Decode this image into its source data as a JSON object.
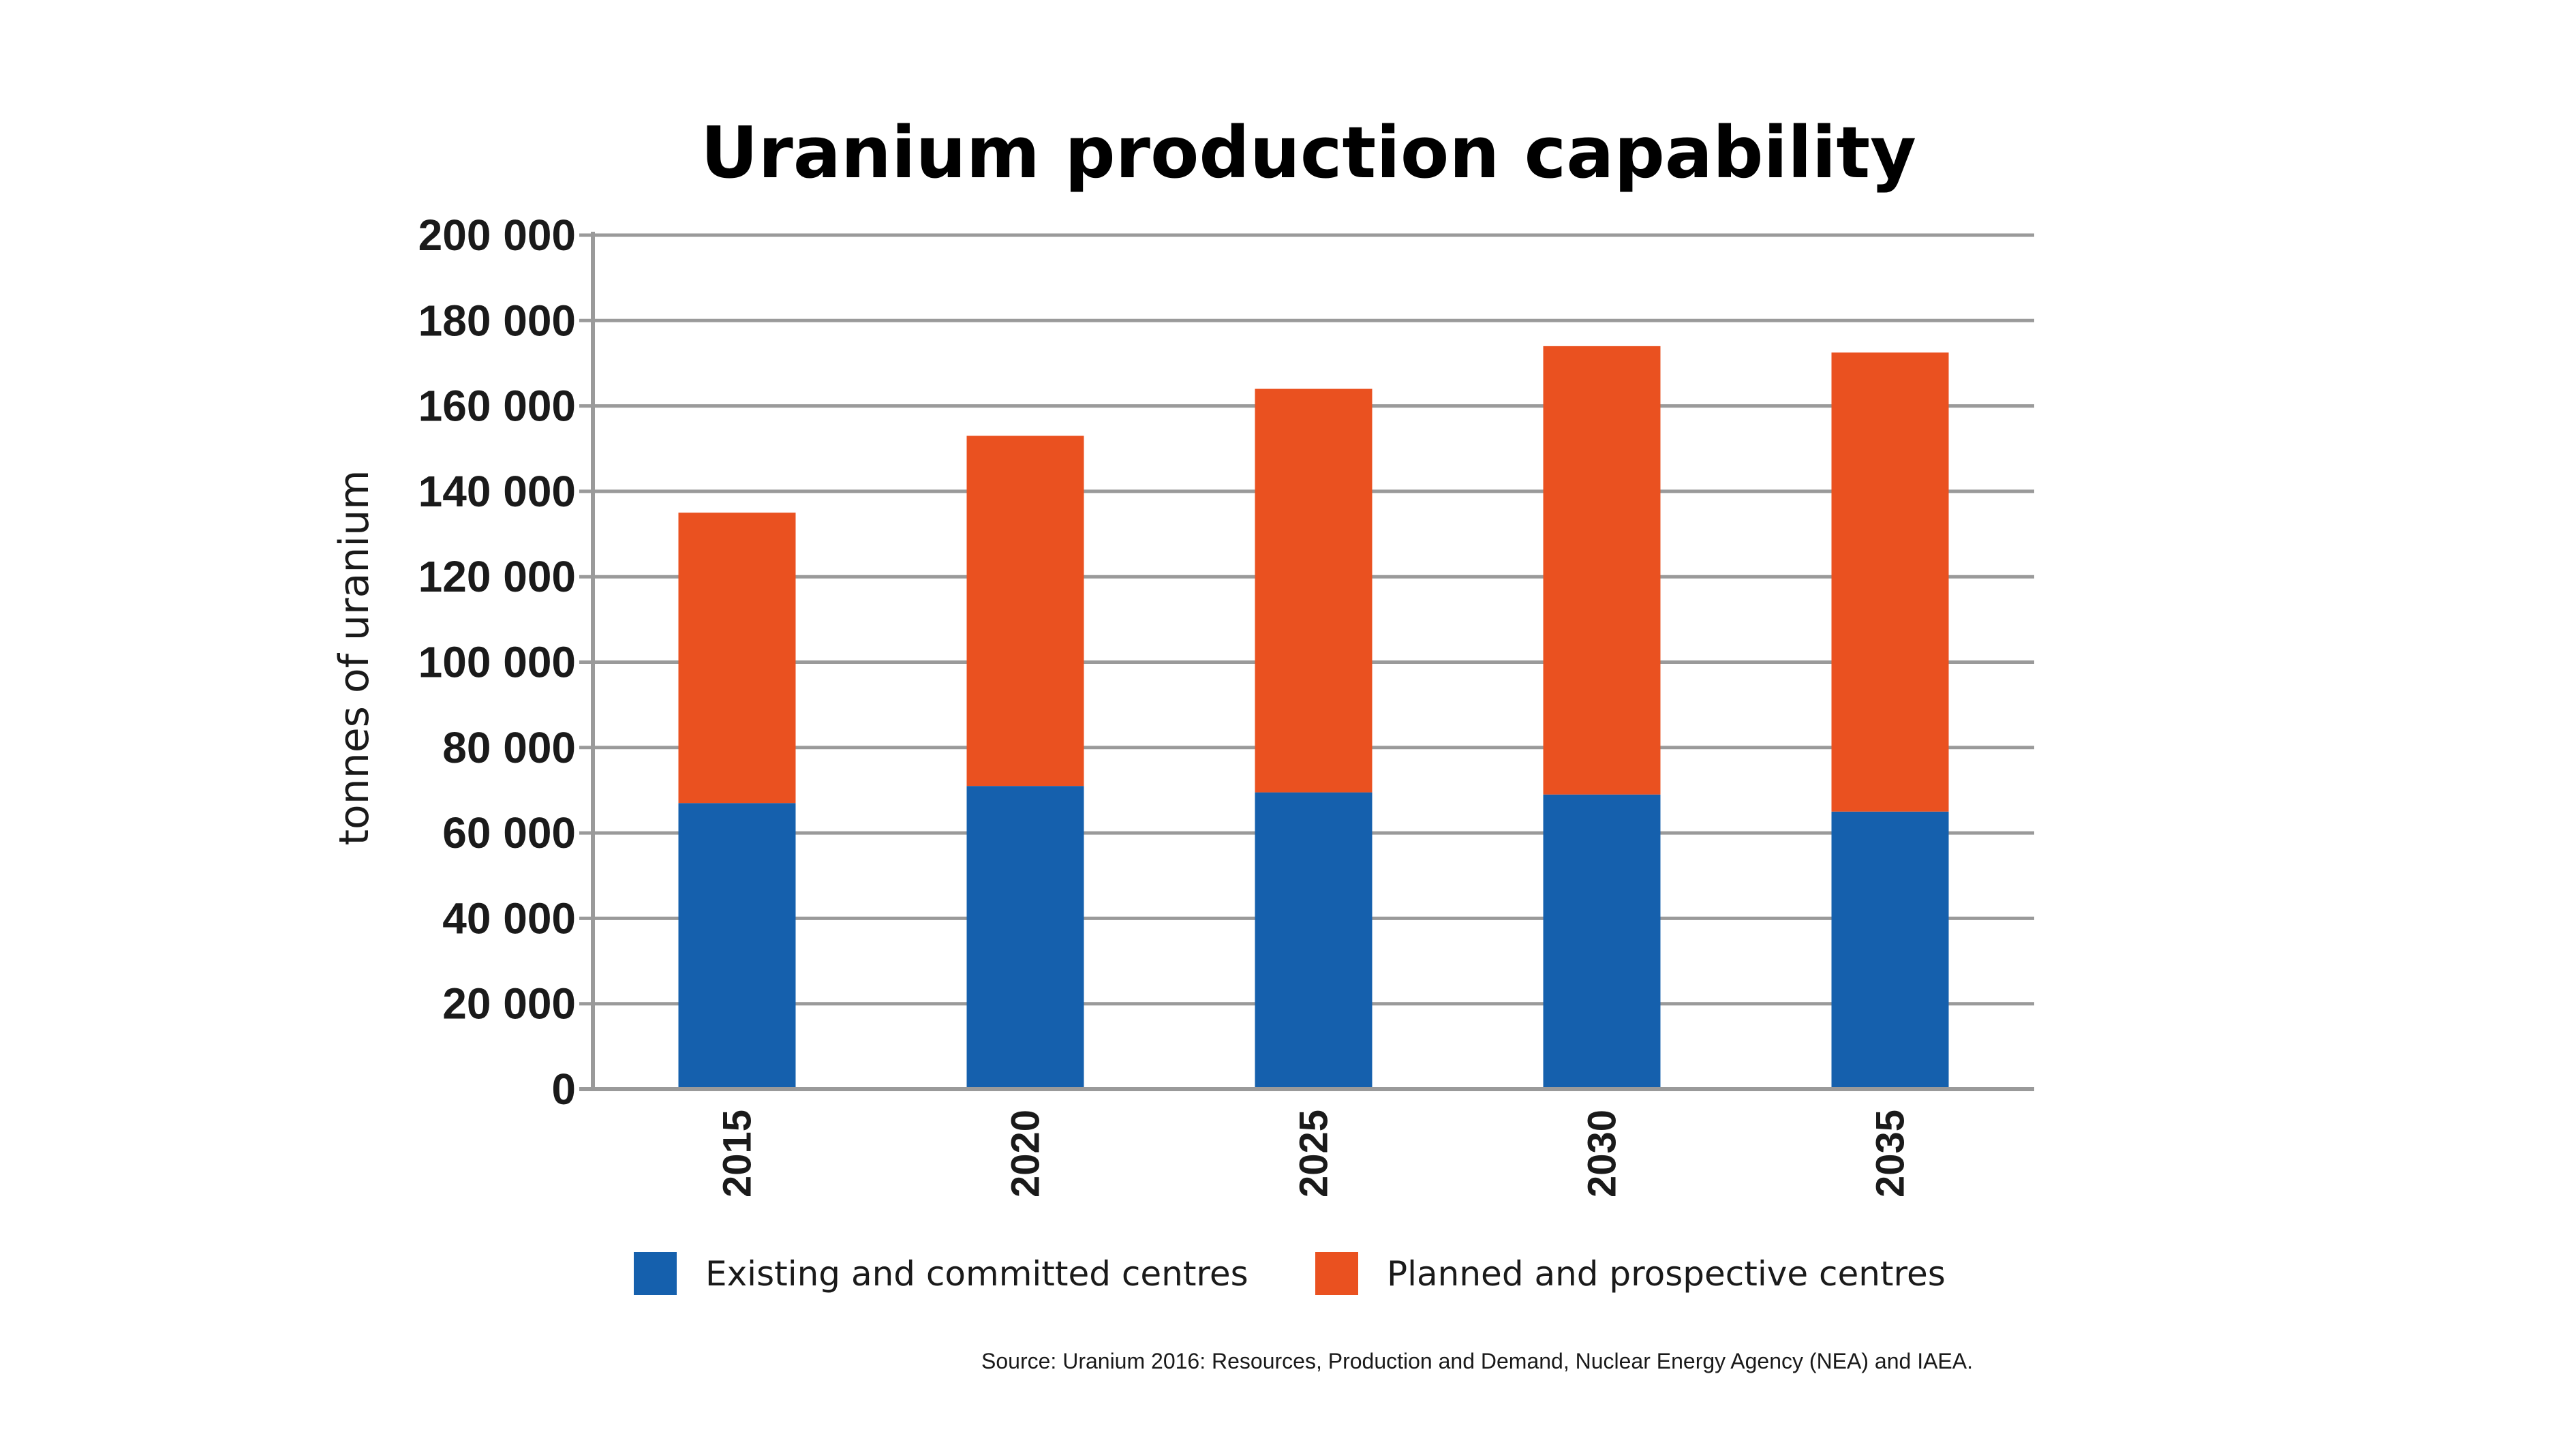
{
  "chart_data": {
    "type": "bar",
    "stacked": true,
    "title": "Uranium production capability",
    "ylabel": "tonnes of uranium",
    "xlabel": "",
    "categories": [
      "2015",
      "2020",
      "2025",
      "2030",
      "2035"
    ],
    "series": [
      {
        "name": "Existing and committed centres",
        "color": "#1560ad",
        "values": [
          67000,
          71000,
          69500,
          69000,
          65000
        ]
      },
      {
        "name": "Planned and prospective centres",
        "color": "#ea5120",
        "values": [
          68000,
          82000,
          94500,
          105000,
          107500
        ]
      }
    ],
    "ylim": [
      0,
      200000
    ],
    "yticks": [
      0,
      20000,
      40000,
      60000,
      80000,
      100000,
      120000,
      140000,
      160000,
      180000,
      200000
    ],
    "ytick_labels": [
      "0",
      "20 000",
      "40 000",
      "60 000",
      "80 000",
      "100 000",
      "120 000",
      "140 000",
      "160 000",
      "180 000",
      "200 000"
    ],
    "grid": true,
    "legend_position": "bottom",
    "x_tick_rotation": "vertical",
    "source": "Source: Uranium 2016: Resources, Production and Demand, Nuclear Energy Agency (NEA) and IAEA."
  }
}
